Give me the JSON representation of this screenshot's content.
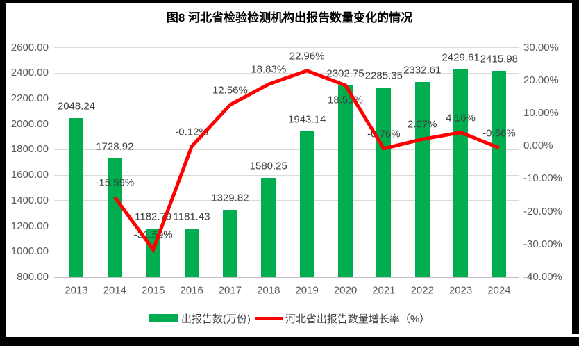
{
  "title": "图8 河北省检验检测机构出报告数量变化的情况",
  "colors": {
    "bar_green": "#00AE50",
    "line_red": "#FF0000",
    "gridline": "#D9D9D9",
    "axis_text": "#595959",
    "label_text": "#404040",
    "frame": "#000000"
  },
  "chart_data": {
    "type": "bar+line combo",
    "title": "图8 河北省检验检测机构出报告数量变化的情况",
    "categories": [
      "2013",
      "2014",
      "2015",
      "2016",
      "2017",
      "2018",
      "2019",
      "2020",
      "2021",
      "2022",
      "2023",
      "2024"
    ],
    "series": [
      {
        "name": "出报告数(万份)",
        "type": "bar",
        "axis": "left",
        "color": "#00AE50",
        "values": [
          2048.24,
          1728.92,
          1182.79,
          1181.43,
          1329.82,
          1580.25,
          1943.14,
          2302.75,
          2285.35,
          2332.61,
          2429.61,
          2415.98
        ],
        "data_labels": [
          "2048.24",
          "1728.92",
          "1182.79",
          "1181.43",
          "1329.82",
          "1580.25",
          "1943.14",
          "2302.75",
          "2285.35",
          "2332.61",
          "2429.61",
          "2415.98"
        ]
      },
      {
        "name": "河北省出报告数量增长率（%）",
        "type": "line",
        "axis": "right",
        "color": "#FF0000",
        "values": [
          null,
          -15.59,
          -31.59,
          -0.12,
          12.56,
          18.83,
          22.96,
          18.51,
          -0.76,
          2.07,
          4.16,
          -0.56
        ],
        "data_labels": [
          null,
          "-15.59%",
          "-31.59%",
          "-0.12%",
          "12.56%",
          "18.83%",
          "22.96%",
          "18.51%",
          "-0.76%",
          "2.07%",
          "4.16%",
          "-0.56%"
        ],
        "label_sides": [
          null,
          "above",
          "above",
          "above",
          "above",
          "above",
          "above",
          "below",
          "above",
          "above",
          "above",
          "above"
        ]
      }
    ],
    "left_axis": {
      "min": 800,
      "max": 2600,
      "tick_labels": [
        "2600.00",
        "2400.00",
        "2200.00",
        "2000.00",
        "1800.00",
        "1600.00",
        "1400.00",
        "1200.00",
        "1000.00",
        "800.00"
      ]
    },
    "right_axis": {
      "min": -40,
      "max": 30,
      "tick_labels": [
        "30.00%",
        "20.00%",
        "10.00%",
        "0.00%",
        "-10.00%",
        "-20.00%",
        "-30.00%",
        "-40.00%"
      ]
    },
    "grid": true,
    "legend_position": "bottom",
    "legend": [
      {
        "label": "出报告数(万份)",
        "swatch": "bar",
        "color": "#00AE50"
      },
      {
        "label": "河北省出报告数量增长率（%）",
        "swatch": "line",
        "color": "#FF0000"
      }
    ]
  }
}
